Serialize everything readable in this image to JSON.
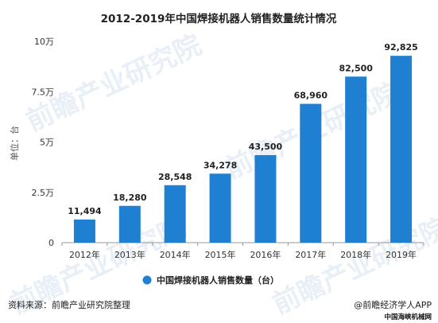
{
  "chart_data": {
    "type": "bar",
    "title": "2012-2019年中国焊接机器人销售数量统计情况",
    "ylabel": "单位：台",
    "categories": [
      "2012年",
      "2013年",
      "2014年",
      "2015年",
      "2016年",
      "2017年",
      "2018年",
      "2019年"
    ],
    "series": [
      {
        "name": "中国焊接机器人销售数量（台）",
        "values": [
          11494,
          18280,
          28548,
          34278,
          43500,
          68960,
          82500,
          92825
        ],
        "labels": [
          "11,494",
          "18,280",
          "28,548",
          "34,278",
          "43,500",
          "68,960",
          "82,500",
          "92,825"
        ],
        "color": "#1f7fd0"
      }
    ],
    "ylim": [
      0,
      100000
    ],
    "yticks": [
      0,
      25000,
      50000,
      75000,
      100000
    ],
    "ytick_labels": [
      "0",
      "2.5万",
      "5万",
      "7.5万",
      "10万"
    ],
    "grid": false,
    "legend": "bottom-center"
  },
  "watermark": {
    "text": "前瞻产业研究院"
  },
  "footer": {
    "source": "资料来源：前瞻产业研究院整理",
    "brand": "@前瞻经济学人APP",
    "sub_brand": "中国海峡机械网"
  }
}
